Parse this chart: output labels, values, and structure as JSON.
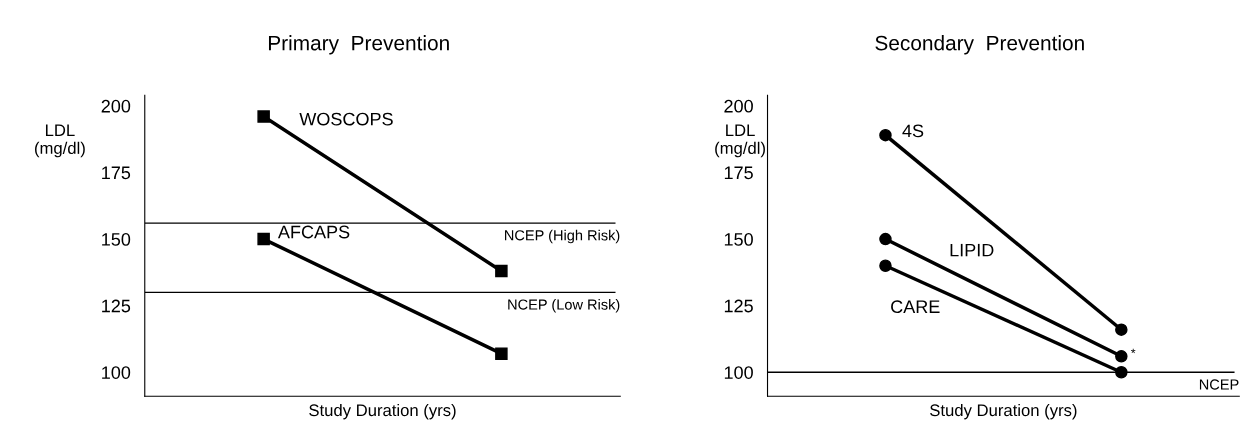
{
  "chart_data": [
    {
      "type": "line",
      "title": "Primary  Prevention",
      "xlabel": "Study Duration (yrs)",
      "ylabel": "LDL\n(mg/dl)",
      "categories": [
        null,
        null
      ],
      "ylim": [
        91,
        204
      ],
      "yticks": [
        100,
        125,
        150,
        175,
        200
      ],
      "marker": "square",
      "grid": false,
      "series": [
        {
          "name": "WOSCOPS",
          "color": "#000000",
          "values": [
            196,
            138
          ]
        },
        {
          "name": "AFCAPS",
          "color": "#000000",
          "values": [
            150,
            107
          ]
        }
      ],
      "ref_lines": [
        {
          "axis": "y",
          "value": 156,
          "label": "NCEP (High Risk)",
          "color": "#000000"
        },
        {
          "axis": "y",
          "value": 130,
          "label": "NCEP (Low Risk)",
          "color": "#000000"
        }
      ]
    },
    {
      "type": "line",
      "title": "Secondary  Prevention",
      "xlabel": "Study Duration (yrs)",
      "ylabel": "LDL\n(mg/dl)",
      "categories": [
        null,
        null
      ],
      "ylim": [
        91,
        204
      ],
      "yticks": [
        100,
        125,
        150,
        175,
        200
      ],
      "marker": "circle",
      "grid": false,
      "series": [
        {
          "name": "4S",
          "color": "#000000",
          "values": [
            189,
            116
          ]
        },
        {
          "name": "LIPID",
          "color": "#000000",
          "values": [
            150,
            106
          ]
        },
        {
          "name": "CARE",
          "color": "#000000",
          "values": [
            140,
            100
          ]
        }
      ],
      "ref_lines": [
        {
          "axis": "y",
          "value": 100,
          "label": "NCEP",
          "color": "#000000"
        }
      ],
      "annotations": [
        "*"
      ]
    }
  ]
}
